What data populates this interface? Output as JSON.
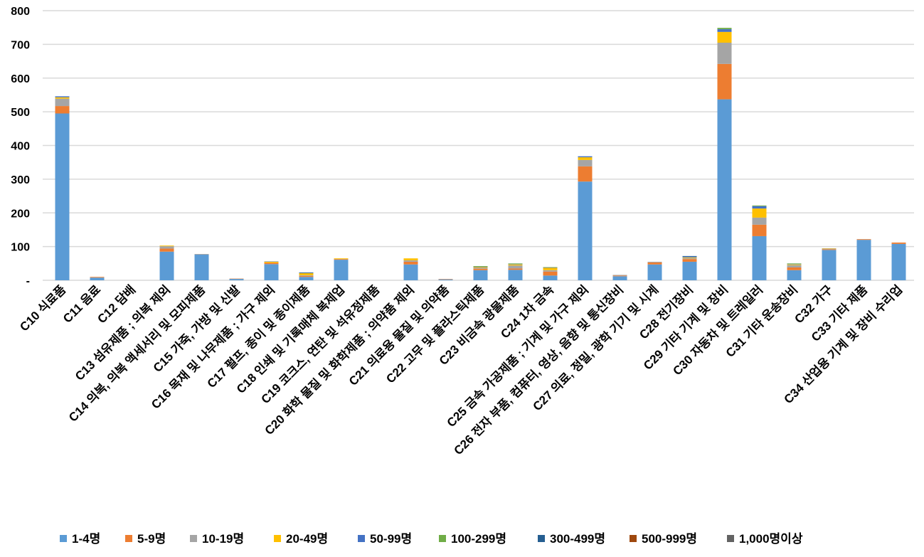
{
  "chart_data": {
    "type": "bar",
    "stacked": true,
    "title": "",
    "xlabel": "",
    "ylabel": "",
    "ylim": [
      0,
      800
    ],
    "yticks": [
      0,
      100,
      200,
      300,
      400,
      500,
      600,
      700,
      800
    ],
    "ytick_labels": [
      "-",
      "100",
      "200",
      "300",
      "400",
      "500",
      "600",
      "700",
      "800"
    ],
    "grid": true,
    "legend_position": "bottom",
    "categories": [
      "C10 식료품",
      "C11 음료",
      "C12 담배",
      "C13 섬유제품 ; 의복 제외",
      "C14 의복, 의복 액세서리 및 모피제품",
      "C15 가죽, 가방 및 신발",
      "C16 목재 및 나무제품 ; 가구 제외",
      "C17 펄프, 종이 및 종이제품",
      "C18 인쇄 및 기록매체 복제업",
      "C19 코크스, 연탄 및 석유정제품",
      "C20 화학 물질 및 화학제품 ; 의약품 제외",
      "C21 의료용 물질 및 의약품",
      "C22 고무 및 플라스틱제품",
      "C23 비금속 광물제품",
      "C24 1차 금속",
      "C25 금속 가공제품 ; 기계 및 가구 제외",
      "C26 전자 부품, 컴퓨터, 영상, 음향 및 통신장비",
      "C27 의료, 정밀, 광학 기기 및 시계",
      "C28 전기장비",
      "C29 기타 기계 및 장비",
      "C30 자동차 및 트레일러",
      "C31 기타 운송장비",
      "C32 가구",
      "C33 기타 제품",
      "C34 산업용 기계 및 장비 수리업"
    ],
    "series": [
      {
        "name": "1-4명",
        "color": "#5b9bd5",
        "values": [
          495,
          8,
          0,
          85,
          76,
          4,
          48,
          10,
          61,
          0,
          47,
          2,
          30,
          31,
          14,
          293,
          12,
          47,
          55,
          537,
          131,
          30,
          90,
          120,
          108
        ]
      },
      {
        "name": "5-9명",
        "color": "#ed7d31",
        "values": [
          22,
          2,
          0,
          9,
          0,
          1,
          4,
          3,
          2,
          0,
          8,
          1,
          4,
          4,
          12,
          45,
          2,
          6,
          8,
          105,
          34,
          8,
          2,
          2,
          4
        ]
      },
      {
        "name": "10-19명",
        "color": "#a5a5a5",
        "values": [
          22,
          0,
          0,
          7,
          2,
          0,
          0,
          2,
          0,
          0,
          4,
          1,
          3,
          9,
          4,
          19,
          2,
          2,
          3,
          63,
          21,
          7,
          2,
          0,
          0
        ]
      },
      {
        "name": "20-49명",
        "color": "#ffc000",
        "values": [
          4,
          0,
          0,
          2,
          0,
          0,
          3,
          6,
          2,
          0,
          6,
          0,
          2,
          3,
          7,
          8,
          0,
          0,
          2,
          32,
          27,
          2,
          1,
          0,
          0
        ]
      },
      {
        "name": "50-99명",
        "color": "#4472c4",
        "values": [
          3,
          0,
          0,
          0,
          0,
          0,
          1,
          0,
          0,
          0,
          0,
          0,
          1,
          1,
          1,
          3,
          0,
          0,
          2,
          8,
          7,
          1,
          0,
          0,
          0
        ]
      },
      {
        "name": "100-299명",
        "color": "#70ad47",
        "values": [
          0,
          0,
          0,
          0,
          0,
          0,
          0,
          0,
          0,
          0,
          0,
          0,
          2,
          2,
          1,
          0,
          0,
          0,
          0,
          4,
          2,
          2,
          0,
          0,
          0
        ]
      },
      {
        "name": "300-499명",
        "color": "#255e91",
        "values": [
          0,
          0,
          0,
          0,
          0,
          0,
          0,
          2,
          0,
          0,
          0,
          0,
          0,
          0,
          0,
          0,
          0,
          0,
          2,
          0,
          0,
          0,
          0,
          0,
          0
        ]
      },
      {
        "name": "500-999명",
        "color": "#9e480e",
        "values": [
          0,
          0,
          0,
          0,
          0,
          0,
          0,
          0,
          0,
          0,
          0,
          0,
          0,
          0,
          0,
          0,
          0,
          0,
          0,
          0,
          0,
          0,
          0,
          0,
          0
        ]
      },
      {
        "name": "1,000명이상",
        "color": "#636363",
        "values": [
          0,
          0,
          0,
          0,
          0,
          0,
          0,
          0,
          0,
          0,
          0,
          0,
          0,
          0,
          0,
          0,
          0,
          0,
          0,
          0,
          0,
          0,
          0,
          0,
          0
        ]
      }
    ]
  }
}
